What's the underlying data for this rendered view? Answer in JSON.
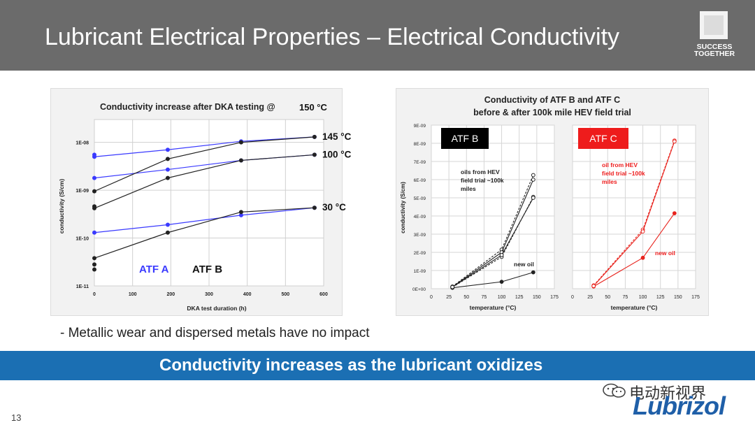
{
  "slide": {
    "title": "Lubricant Electrical Properties – Electrical Conductivity",
    "logo_text_line1": "SUCCESS",
    "logo_text_line2": "TOGETHER",
    "bullet": "- Metallic wear and dispersed metals have no impact",
    "banner": "Conductivity increases as the lubricant oxidizes",
    "page_number": "13",
    "watermark": "电动新视界",
    "brand": "Lubrizol"
  },
  "colors": {
    "header": "#6b6b6b",
    "banner": "#1b6fb3",
    "atf_a": "#3a3aff",
    "atf_b": "#222222",
    "atf_c": "#e8241e"
  },
  "chart_data": [
    {
      "type": "line",
      "title": "Conductivity increase after DKA testing @",
      "title_suffix": "150 °C",
      "xlabel": "DKA test duration (h)",
      "ylabel": "conductivity (S/cm)",
      "xlim": [
        0,
        600
      ],
      "xticks": [
        "0",
        "100",
        "200",
        "300",
        "400",
        "500",
        "600"
      ],
      "ylim": [
        1e-11,
        3e-08
      ],
      "yscale": "log",
      "yticks": [
        "1E-11",
        "1E-10",
        "1E-09",
        "1E-08"
      ],
      "grid": true,
      "series_labels": [
        "ATF A",
        "ATF B"
      ],
      "temperature_labels": [
        {
          "text": "145 °C",
          "y": 1.3e-08
        },
        {
          "text": "100 °C",
          "y": 5.5e-09
        },
        {
          "text": "30 °C",
          "y": 4.3e-10
        }
      ],
      "series": [
        {
          "group": "ATF A",
          "x": [
            0,
            192,
            384,
            576
          ],
          "y": [
            5e-09,
            7e-09,
            1.05e-08,
            1.3e-08
          ]
        },
        {
          "group": "ATF A",
          "x": [
            0,
            192,
            384,
            576
          ],
          "y": [
            1.8e-09,
            2.7e-09,
            4.2e-09,
            5.5e-09
          ]
        },
        {
          "group": "ATF A",
          "x": [
            0,
            192,
            384,
            576
          ],
          "y": [
            1.3e-10,
            1.9e-10,
            3e-10,
            4.3e-10
          ]
        },
        {
          "group": "ATF B",
          "x": [
            0,
            192,
            384,
            576
          ],
          "y": [
            9.5e-10,
            4.5e-09,
            1e-08,
            1.3e-08
          ]
        },
        {
          "group": "ATF B",
          "x": [
            0,
            192,
            384,
            576
          ],
          "y": [
            4.2e-10,
            1.8e-09,
            4.2e-09,
            5.5e-09
          ]
        },
        {
          "group": "ATF B",
          "x": [
            0,
            192,
            384,
            576
          ],
          "y": [
            3.8e-11,
            1.3e-10,
            3.5e-10,
            4.3e-10
          ]
        }
      ],
      "extra_points": [
        {
          "group": "ATF A",
          "x": 0,
          "y": 5.5e-09
        },
        {
          "group": "ATF B",
          "x": 0,
          "y": 4.6e-10
        },
        {
          "group": "ATF B",
          "x": 0,
          "y": 2.8e-11
        },
        {
          "group": "ATF B",
          "x": 0,
          "y": 2.2e-11
        }
      ]
    },
    {
      "type": "line",
      "title_line1": "Conductivity of ATF B and ATF C",
      "title_line2": "before & after 100k mile HEV field trial",
      "ylabel": "conductivity (S/cm)",
      "xlabel": "temperature (°C)",
      "ylim": [
        0,
        9e-09
      ],
      "yticks": [
        "0E+00",
        "1E-09",
        "2E-09",
        "3E-09",
        "4E-09",
        "5E-09",
        "6E-09",
        "7E-09",
        "8E-09",
        "9E-09"
      ],
      "xlim": [
        0,
        175
      ],
      "xticks": [
        "0",
        "25",
        "50",
        "75",
        "100",
        "125",
        "150",
        "175"
      ],
      "grid": true,
      "panels": [
        {
          "label": "ATF B",
          "annotation_lines": [
            "oils from HEV",
            "field trial ~100k",
            "miles"
          ],
          "new_oil_label": "new oil",
          "series": [
            {
              "name": "new oil",
              "x": [
                30,
                100,
                145
              ],
              "y": [
                5e-11,
                3.8e-10,
                9e-10
              ]
            },
            {
              "x": [
                30,
                100,
                145
              ],
              "y": [
                1.2e-10,
                2.15e-09,
                6.25e-09
              ]
            },
            {
              "x": [
                30,
                100,
                145
              ],
              "y": [
                1e-10,
                2e-09,
                6e-09
              ]
            },
            {
              "x": [
                30,
                100,
                145
              ],
              "y": [
                8e-11,
                1.75e-09,
                5.05e-09
              ]
            },
            {
              "x": [
                30,
                100,
                145
              ],
              "y": [
                9e-11,
                1.85e-09,
                5e-09
              ]
            }
          ]
        },
        {
          "label": "ATF C",
          "annotation_lines": [
            "oil from HEV",
            "field trial ~100k",
            "miles"
          ],
          "new_oil_label": "new oil",
          "series": [
            {
              "name": "new oil",
              "x": [
                30,
                100,
                145
              ],
              "y": [
                1.2e-10,
                1.7e-09,
                4.15e-09
              ]
            },
            {
              "x": [
                30,
                100,
                145
              ],
              "y": [
                1.8e-10,
                3.25e-09,
                8.15e-09
              ]
            },
            {
              "x": [
                30,
                100,
                145
              ],
              "y": [
                1.5e-10,
                3.15e-09,
                8.1e-09
              ]
            }
          ]
        }
      ]
    }
  ]
}
